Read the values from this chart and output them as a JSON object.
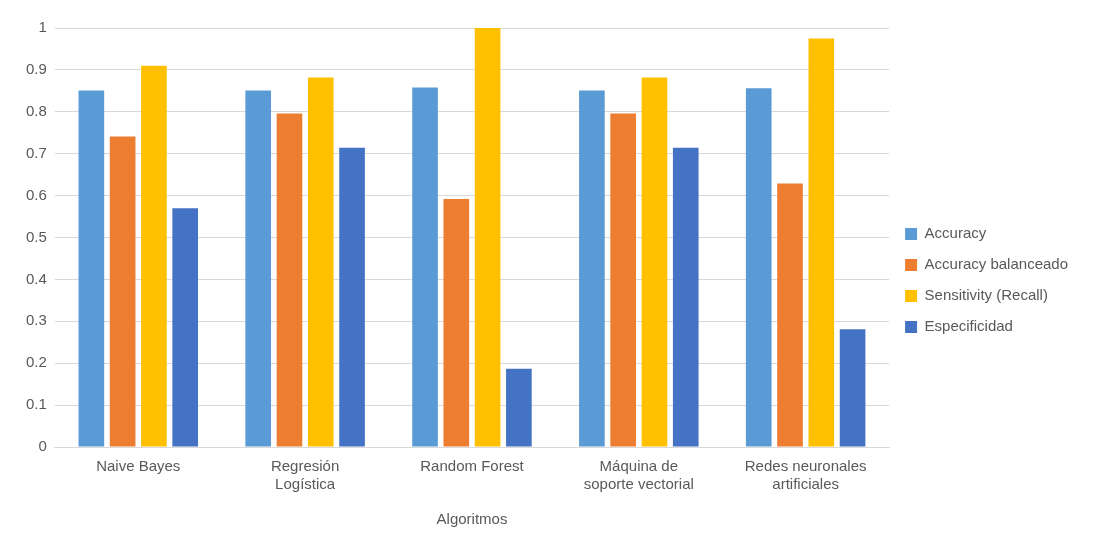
{
  "chart_data": {
    "type": "bar",
    "xlabel": "Algoritmos",
    "categories": [
      "Naive Bayes",
      "Regresión Logística",
      "Random Forest",
      "Máquina de soporte vectorial",
      "Redes neuronales artificiales"
    ],
    "series": [
      {
        "name": "Accuracy",
        "color": "#5b9bd5",
        "values": [
          0.851,
          0.851,
          0.858,
          0.851,
          0.856
        ]
      },
      {
        "name": "Accuracy balanceado",
        "color": "#ed7d31",
        "values": [
          0.741,
          0.796,
          0.592,
          0.796,
          0.629
        ]
      },
      {
        "name": "Sensitivity (Recall)",
        "color": "#ffc000",
        "values": [
          0.91,
          0.882,
          1.0,
          0.882,
          0.975
        ]
      },
      {
        "name": "Especificidad",
        "color": "#4472c4",
        "values": [
          0.57,
          0.714,
          0.187,
          0.714,
          0.281
        ]
      }
    ],
    "ylim": [
      0,
      1
    ],
    "yticks": [
      0,
      0.1,
      0.2,
      0.3,
      0.4,
      0.5,
      0.6,
      0.7,
      0.8,
      0.9,
      1
    ],
    "grid": "y",
    "legend": "right"
  }
}
